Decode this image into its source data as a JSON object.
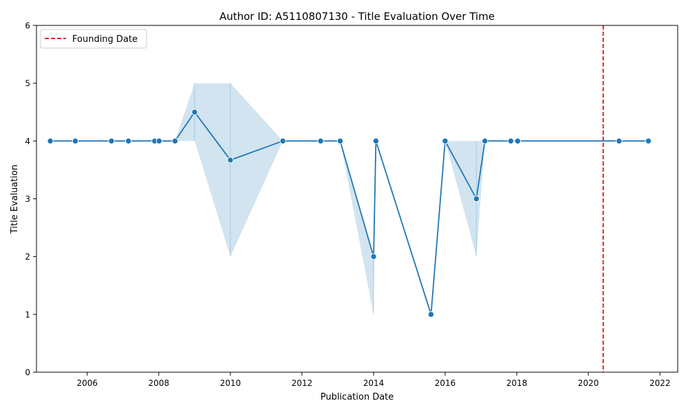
{
  "chart_data": {
    "type": "line",
    "title": "Author ID: A5110807130 - Title Evaluation Over Time",
    "xlabel": "Publication Date",
    "ylabel": "Title Evaluation",
    "xlim": [
      "2004-08-01",
      "2022-07-01"
    ],
    "ylim": [
      0,
      6
    ],
    "xticks": [
      "2006",
      "2008",
      "2010",
      "2012",
      "2014",
      "2016",
      "2018",
      "2020",
      "2022"
    ],
    "yticks": [
      "0",
      "1",
      "2",
      "3",
      "4",
      "5",
      "6"
    ],
    "grid": false,
    "legend": {
      "position": "top-left",
      "entries": [
        {
          "label": "Founding Date",
          "style": "dashed",
          "color": "#d62728"
        }
      ]
    },
    "series": [
      {
        "color": "#1f77b4",
        "marker": "circle",
        "points": [
          {
            "x": "2004-12-20",
            "y": 4
          },
          {
            "x": "2005-09-01",
            "y": 4
          },
          {
            "x": "2006-09-05",
            "y": 4
          },
          {
            "x": "2007-02-25",
            "y": 4
          },
          {
            "x": "2007-11-20",
            "y": 4
          },
          {
            "x": "2008-01-05",
            "y": 4
          },
          {
            "x": "2008-06-15",
            "y": 4
          },
          {
            "x": "2009-01-01",
            "y": 4.5
          },
          {
            "x": "2010-01-01",
            "y": 3.67
          },
          {
            "x": "2011-06-20",
            "y": 4
          },
          {
            "x": "2012-07-10",
            "y": 4
          },
          {
            "x": "2013-01-25",
            "y": 4
          },
          {
            "x": "2014-01-01",
            "y": 2
          },
          {
            "x": "2014-01-25",
            "y": 4
          },
          {
            "x": "2015-08-10",
            "y": 1
          },
          {
            "x": "2016-01-01",
            "y": 4
          },
          {
            "x": "2016-11-15",
            "y": 3
          },
          {
            "x": "2017-02-10",
            "y": 4
          },
          {
            "x": "2017-11-01",
            "y": 4
          },
          {
            "x": "2018-01-10",
            "y": 4
          },
          {
            "x": "2020-11-10",
            "y": 4
          },
          {
            "x": "2021-09-05",
            "y": 4
          }
        ],
        "confidence_band": [
          {
            "x": "2009-01-01",
            "low": 4,
            "high": 5
          },
          {
            "x": "2010-01-01",
            "low": 2,
            "high": 5
          },
          {
            "x": "2014-01-01",
            "low": 1,
            "high": 2
          },
          {
            "x": "2016-11-15",
            "low": 2,
            "high": 4
          }
        ]
      }
    ],
    "reference_lines": [
      {
        "label": "Founding Date",
        "x": "2020-06-01",
        "color": "#d62728",
        "style": "dashed"
      }
    ]
  }
}
